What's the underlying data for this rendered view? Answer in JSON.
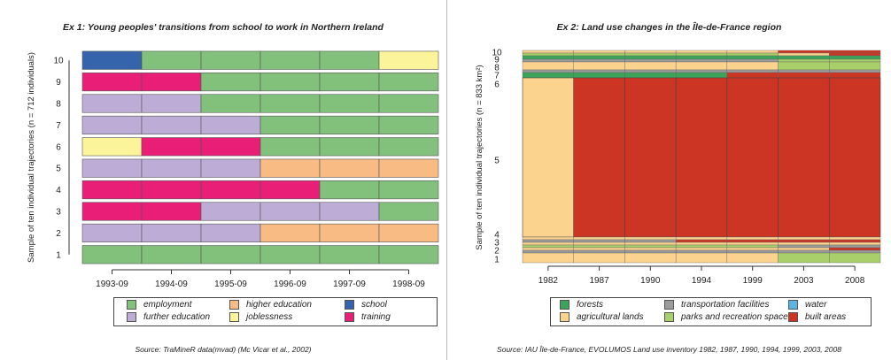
{
  "colors": {
    "employment": "#82c17b",
    "further_education": "#bdacd6",
    "higher_education": "#f8bb84",
    "joblessness": "#fbf49b",
    "school": "#3563ac",
    "training": "#e81e77",
    "forests": "#3ba35a",
    "agricultural_lands": "#fbd28e",
    "transportation": "#9b9b9b",
    "parks": "#a8cf6a",
    "water": "#5cb4e1",
    "built_areas": "#cc3423"
  },
  "chart_data": [
    {
      "type": "sequence_index_plot",
      "title": "Ex 1: Young peoples' transitions from school to work in Northern Ireland",
      "ylabel": "Sample of ten individual trajectories (n = 712 individuals)",
      "x_ticks": [
        "1993-09",
        "1994-09",
        "1995-09",
        "1996-09",
        "1997-09",
        "1998-09"
      ],
      "y_ticks": [
        "1",
        "2",
        "3",
        "4",
        "5",
        "6",
        "7",
        "8",
        "9",
        "10"
      ],
      "states": [
        {
          "key": "employment",
          "label": "employment"
        },
        {
          "key": "further_education",
          "label": "further education"
        },
        {
          "key": "higher_education",
          "label": "higher education"
        },
        {
          "key": "joblessness",
          "label": "joblessness"
        },
        {
          "key": "school",
          "label": "school"
        },
        {
          "key": "training",
          "label": "training"
        }
      ],
      "sequences": [
        {
          "row": "1",
          "states": [
            "employment",
            "employment",
            "employment",
            "employment",
            "employment",
            "employment"
          ]
        },
        {
          "row": "2",
          "states": [
            "further_education",
            "further_education",
            "further_education",
            "higher_education",
            "higher_education",
            "higher_education"
          ]
        },
        {
          "row": "3",
          "states": [
            "training",
            "training",
            "further_education",
            "further_education",
            "further_education",
            "employment"
          ]
        },
        {
          "row": "4",
          "states": [
            "training",
            "training",
            "training",
            "training",
            "employment",
            "employment"
          ]
        },
        {
          "row": "5",
          "states": [
            "further_education",
            "further_education",
            "further_education",
            "higher_education",
            "higher_education",
            "higher_education"
          ]
        },
        {
          "row": "6",
          "states": [
            "joblessness",
            "training",
            "training",
            "employment",
            "employment",
            "employment"
          ]
        },
        {
          "row": "7",
          "states": [
            "further_education",
            "further_education",
            "further_education",
            "employment",
            "employment",
            "employment"
          ]
        },
        {
          "row": "8",
          "states": [
            "further_education",
            "further_education",
            "employment",
            "employment",
            "employment",
            "employment"
          ]
        },
        {
          "row": "9",
          "states": [
            "training",
            "training",
            "employment",
            "employment",
            "employment",
            "employment"
          ]
        },
        {
          "row": "10",
          "states": [
            "school",
            "employment",
            "employment",
            "employment",
            "employment",
            "joblessness"
          ]
        }
      ],
      "source": "Source: TraMineR data(mvad) (Mc Vicar et al., 2002)"
    },
    {
      "type": "sequence_index_plot",
      "title": "Ex 2: Land use changes in the Île-de-France region",
      "ylabel": "Sample of ten individual trajectories (n = 833 km²)",
      "x_ticks": [
        "1982",
        "1987",
        "1990",
        "1994",
        "1999",
        "2003",
        "2008"
      ],
      "y_ticks": [
        "1",
        "2",
        "3",
        "4",
        "5",
        "6",
        "7",
        "8",
        "9",
        "10"
      ],
      "states": [
        {
          "key": "forests",
          "label": "forests"
        },
        {
          "key": "agricultural_lands",
          "label": "agricultural lands"
        },
        {
          "key": "transportation",
          "label": "transportation facilities"
        },
        {
          "key": "parks",
          "label": "parks and recreation spaces"
        },
        {
          "key": "water",
          "label": "water"
        },
        {
          "key": "built_areas",
          "label": "built areas"
        }
      ],
      "main_sequences": [
        {
          "row": "6",
          "states": [
            "agricultural_lands",
            "built_areas",
            "built_areas",
            "built_areas",
            "built_areas",
            "built_areas",
            "built_areas"
          ]
        },
        {
          "row": "5",
          "states": [
            "agricultural_lands",
            "built_areas",
            "built_areas",
            "built_areas",
            "built_areas",
            "built_areas",
            "built_areas"
          ]
        }
      ],
      "source": "Source: IAU Île-de-France, EVOLUMOS Land use inventory 1982, 1987, 1990, 1994, 1999, 2003, 2008"
    }
  ]
}
